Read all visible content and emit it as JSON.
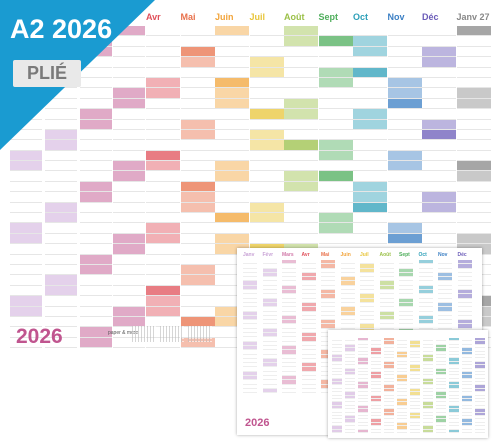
{
  "banner": {
    "title": "A2 2026",
    "tag": "PLIÉ",
    "color": "#1a9bd1"
  },
  "big_year": "2026",
  "brand": "paper & more",
  "months": [
    {
      "label": "Avr",
      "color": "#e0505a"
    },
    {
      "label": "Mai",
      "color": "#e8714b"
    },
    {
      "label": "Juin",
      "color": "#f2a43a"
    },
    {
      "label": "Juil",
      "color": "#e8c53a"
    },
    {
      "label": "Août",
      "color": "#9bc048"
    },
    {
      "label": "Sept",
      "color": "#4fae5c"
    },
    {
      "label": "Oct",
      "color": "#2c9fb8"
    },
    {
      "label": "Nov",
      "color": "#3b7fc4"
    },
    {
      "label": "Déc",
      "color": "#6a5bb8"
    },
    {
      "label": "Janv 27",
      "color": "#888888"
    }
  ],
  "left_colors": [
    "#c9a3d6",
    "#c0558f"
  ],
  "sheet1_months": [
    "Janv",
    "Févr",
    "Mars",
    "Avr",
    "Mai",
    "Juin",
    "Juil",
    "Août",
    "Sept",
    "Oct",
    "Nov",
    "Déc"
  ],
  "sheet1_year": "2026"
}
